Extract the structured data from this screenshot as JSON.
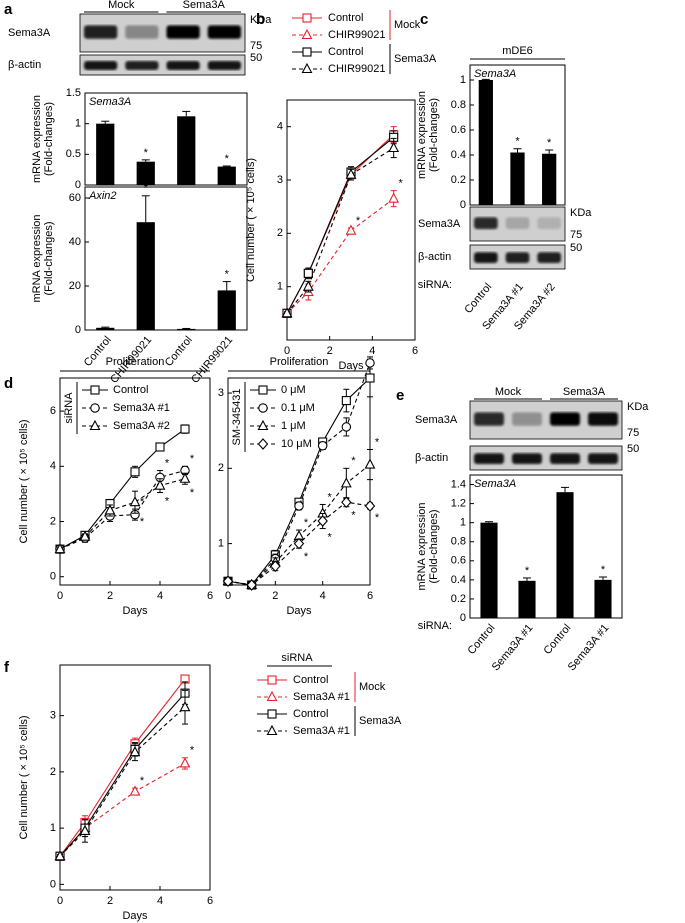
{
  "panel_labels": [
    "a",
    "b",
    "c",
    "d",
    "e",
    "f"
  ],
  "blots": [
    {
      "groups": [
        "Mock",
        "Sema3A"
      ],
      "rows": [
        "Sema3A",
        "β-actin"
      ],
      "unit": "KDa",
      "markers": [
        75,
        50
      ]
    },
    {
      "header": "mDE6",
      "rows": [
        "Sema3A",
        "β-actin"
      ],
      "unit": "KDa",
      "markers": [
        75,
        50
      ]
    },
    {
      "groups": [
        "Mock",
        "Sema3A"
      ],
      "rows": [
        "Sema3A",
        "β-actin"
      ],
      "unit": "KDa",
      "markers": [
        75,
        50
      ]
    }
  ],
  "chart_data": [
    {
      "type": "bar",
      "title": "Sema3A",
      "ylabel": [
        "mRNA expression",
        "(Fold-changes)"
      ],
      "values": [
        1,
        0.38,
        1.12,
        0.3
      ],
      "errors": [
        0.04,
        0.03,
        0.08,
        0.01
      ],
      "significance": [
        null,
        "*",
        null,
        "*"
      ],
      "color": "#000000",
      "ylim": [
        0,
        1.5
      ],
      "yticks": [
        0,
        0.5,
        1,
        1.5
      ]
    },
    {
      "type": "bar",
      "title": "Axin2",
      "ylabel": [
        "mRNA expression",
        "(Fold-changes)"
      ],
      "categories": [
        "Control",
        "CHIR99021",
        "Control",
        "CHIR99021"
      ],
      "values": [
        1,
        49,
        0.5,
        18
      ],
      "errors": [
        0.3,
        12,
        0.2,
        4
      ],
      "significance": [
        null,
        "*",
        null,
        "*"
      ],
      "color": "#000000",
      "ylim": [
        0,
        65
      ],
      "yticks": [
        0,
        20,
        40,
        60
      ]
    },
    {
      "type": "line",
      "xlabel": "Days",
      "ylabel": "Cell number ( × 10⁵ cells)",
      "x": [
        0,
        1,
        3,
        5
      ],
      "xlim": [
        0,
        6
      ],
      "xticks": [
        0,
        2,
        4,
        6
      ],
      "ylim": [
        0,
        4.5
      ],
      "yticks": [
        1,
        2,
        3,
        4
      ],
      "legend_groups": [
        {
          "name": "Mock",
          "color": "#e8202a"
        },
        {
          "name": "Sema3A",
          "color": "#000000"
        }
      ],
      "series": [
        {
          "name": "Control",
          "color": "#e8202a",
          "marker": "square",
          "dash": false,
          "values": [
            0.5,
            1.25,
            3.1,
            3.85
          ],
          "errors": [
            0.03,
            0.08,
            0.1,
            0.15
          ]
        },
        {
          "name": "CHIR99021",
          "color": "#e8202a",
          "marker": "triangle",
          "dash": true,
          "values": [
            0.5,
            0.9,
            2.05,
            2.65
          ],
          "errors": [
            0.03,
            0.15,
            0.05,
            0.15
          ],
          "significance": [
            null,
            null,
            "*",
            "*"
          ]
        },
        {
          "name": "Control",
          "color": "#000000",
          "marker": "square",
          "dash": false,
          "values": [
            0.5,
            1.25,
            3.15,
            3.8
          ],
          "errors": [
            0.03,
            0.1,
            0.1,
            0.12
          ]
        },
        {
          "name": "CHIR99021",
          "color": "#000000",
          "marker": "triangle",
          "dash": true,
          "values": [
            0.5,
            1.0,
            3.1,
            3.6
          ],
          "errors": [
            0.03,
            0.1,
            0.1,
            0.18
          ]
        }
      ]
    },
    {
      "type": "bar",
      "title": "Sema3A",
      "ylabel": [
        "mRNA expression",
        "(Fold-changes)"
      ],
      "category_title": "siRNA:",
      "categories": [
        "Control",
        "Sema3A #1",
        "Sema3A #2"
      ],
      "values": [
        1,
        0.42,
        0.41
      ],
      "errors": [
        0.005,
        0.03,
        0.03
      ],
      "significance": [
        null,
        "*",
        "*"
      ],
      "color": "#000000",
      "ylim": [
        0,
        1.12
      ],
      "yticks": [
        0,
        0.2,
        0.4,
        0.6,
        0.8,
        1
      ]
    },
    {
      "type": "line",
      "title": "Proliferation",
      "legend_title": "siRNA",
      "xlabel": "Days",
      "ylabel": "Cell number ( × 10⁵ cells)",
      "x": [
        0,
        1,
        2,
        3,
        4,
        5
      ],
      "xlim": [
        0,
        6
      ],
      "xticks": [
        0,
        2,
        4,
        6
      ],
      "ylim": [
        -0.3,
        7.2
      ],
      "yticks": [
        0,
        2,
        4,
        6
      ],
      "series": [
        {
          "name": "Control",
          "color": "#000000",
          "marker": "square",
          "dash": false,
          "values": [
            1,
            1.5,
            2.65,
            3.8,
            4.7,
            5.35
          ],
          "errors": [
            0.05,
            0.1,
            0.15,
            0.2,
            0.12,
            0.15
          ]
        },
        {
          "name": "Sema3A #1",
          "color": "#000000",
          "marker": "circle",
          "dash": true,
          "values": [
            1,
            1.4,
            2.2,
            2.25,
            3.6,
            3.85
          ],
          "errors": [
            0.05,
            0.15,
            0.2,
            0.2,
            0.25,
            0.15
          ],
          "significance": [
            null,
            null,
            null,
            "*",
            "*",
            "*"
          ]
        },
        {
          "name": "Sema3A #2",
          "color": "#000000",
          "marker": "triangle",
          "dash": true,
          "values": [
            1,
            1.45,
            2.4,
            2.7,
            3.3,
            3.55
          ],
          "errors": [
            0.05,
            0.1,
            0.2,
            0.4,
            0.25,
            0.2
          ],
          "significance": [
            null,
            null,
            null,
            "*",
            "*",
            "*"
          ]
        }
      ]
    },
    {
      "type": "line",
      "title": "Proliferation",
      "legend_title": "SM-345431",
      "xlabel": "Days",
      "x": [
        0,
        1,
        2,
        3,
        4,
        5,
        6
      ],
      "xlim": [
        0,
        6
      ],
      "xticks": [
        0,
        2,
        4,
        6
      ],
      "ylim": [
        0.45,
        3.2
      ],
      "yticks": [
        1,
        2,
        3
      ],
      "series": [
        {
          "name": "0 μM",
          "color": "#000000",
          "marker": "square",
          "dash": false,
          "values": [
            0.5,
            0.45,
            0.85,
            1.55,
            2.35,
            2.9,
            3.2
          ],
          "errors": [
            0.02,
            0.04,
            0.06,
            0.05,
            0.05,
            0.15,
            0.25
          ]
        },
        {
          "name": "0.1 μM",
          "color": "#000000",
          "marker": "circle",
          "dash": true,
          "values": [
            0.5,
            0.45,
            0.8,
            1.5,
            2.3,
            2.55,
            3.4
          ],
          "errors": [
            0.02,
            0.04,
            0.06,
            0.05,
            0.05,
            0.12,
            0.08
          ]
        },
        {
          "name": "1 μM",
          "color": "#000000",
          "marker": "triangle",
          "dash": true,
          "values": [
            0.5,
            0.45,
            0.75,
            1.1,
            1.4,
            1.8,
            2.05
          ],
          "errors": [
            0.02,
            0.04,
            0.06,
            0.08,
            0.12,
            0.2,
            0.2
          ],
          "significance": [
            null,
            null,
            null,
            "*",
            "*",
            "*",
            "*"
          ]
        },
        {
          "name": "10 μM",
          "color": "#000000",
          "marker": "diamond",
          "dash": true,
          "values": [
            0.5,
            0.45,
            0.7,
            1.0,
            1.3,
            1.55,
            1.5
          ],
          "errors": [
            0.02,
            0.04,
            0.06,
            0.06,
            0.1,
            0.06,
            0.04
          ],
          "significance": [
            null,
            null,
            null,
            "*",
            "*",
            "*",
            "*"
          ]
        }
      ]
    },
    {
      "type": "bar",
      "title": "Sema3A",
      "ylabel": [
        "mRNA expression",
        "(Fold-changes)"
      ],
      "category_title": "siRNA:",
      "categories": [
        "Control",
        "Sema3A #1",
        "Control",
        "Sema3A #1"
      ],
      "values": [
        1,
        0.39,
        1.32,
        0.4
      ],
      "errors": [
        0.01,
        0.03,
        0.05,
        0.03
      ],
      "significance": [
        null,
        "*",
        null,
        "*"
      ],
      "color": "#000000",
      "ylim": [
        0,
        1.5
      ],
      "yticks": [
        0,
        0.2,
        0.4,
        0.6,
        0.8,
        1,
        1.2,
        1.4
      ]
    },
    {
      "type": "line",
      "legend_title": "siRNA",
      "xlabel": "Days",
      "ylabel": "Cell number ( × 10⁵ cells)",
      "x": [
        0,
        1,
        3,
        5
      ],
      "xlim": [
        0,
        6
      ],
      "xticks": [
        0,
        2,
        4,
        6
      ],
      "ylim": [
        -0.1,
        3.9
      ],
      "yticks": [
        0,
        1,
        2,
        3
      ],
      "legend_groups": [
        {
          "name": "Mock",
          "color": "#e8202a"
        },
        {
          "name": "Sema3A",
          "color": "#000000"
        }
      ],
      "series": [
        {
          "name": "Control",
          "color": "#e8202a",
          "marker": "square",
          "dash": false,
          "values": [
            0.5,
            1.1,
            2.5,
            3.65
          ],
          "errors": [
            0.03,
            0.12,
            0.1,
            0.05
          ]
        },
        {
          "name": "Sema3A #1",
          "color": "#e8202a",
          "marker": "triangle",
          "dash": true,
          "values": [
            0.5,
            1.0,
            1.65,
            2.15
          ],
          "errors": [
            0.03,
            0.15,
            0.06,
            0.1
          ],
          "significance": [
            null,
            null,
            "*",
            "*"
          ]
        },
        {
          "name": "Control",
          "color": "#000000",
          "marker": "square",
          "dash": false,
          "values": [
            0.5,
            1.0,
            2.4,
            3.4
          ],
          "errors": [
            0.03,
            0.15,
            0.12,
            0.2
          ]
        },
        {
          "name": "Sema3A #1",
          "color": "#000000",
          "marker": "triangle",
          "dash": true,
          "values": [
            0.5,
            0.95,
            2.35,
            3.15
          ],
          "errors": [
            0.03,
            0.2,
            0.15,
            0.3
          ]
        }
      ]
    }
  ]
}
